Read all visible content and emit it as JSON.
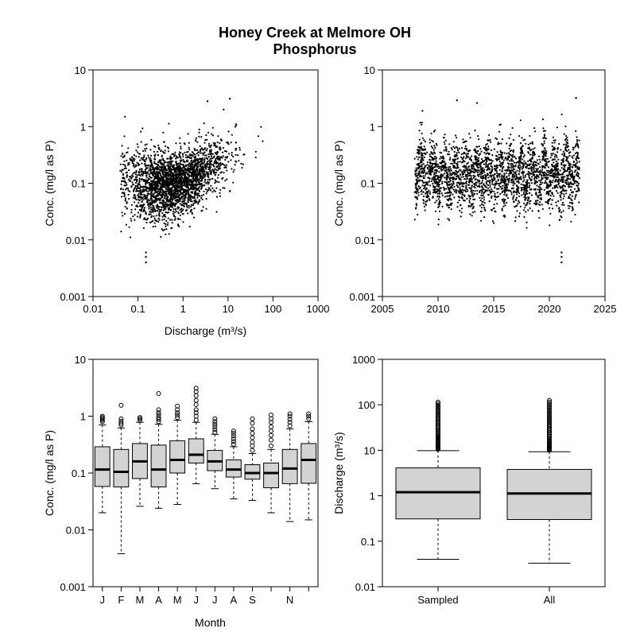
{
  "title": {
    "line1": "Honey Creek at Melmore OH",
    "line2": "Phosphorus"
  },
  "chart_data": [
    {
      "type": "scatter",
      "panel": "top-left",
      "xlabel": "Discharge (m³/s)",
      "ylabel": "Conc. (mg/l as P)",
      "xscale": "log",
      "yscale": "log",
      "xlim": [
        0.01,
        1000
      ],
      "ylim": [
        0.001,
        10
      ],
      "xticks": [
        "0.01",
        "0.1",
        "1",
        "10",
        "100",
        "1000"
      ],
      "yticks": [
        "0.001",
        "0.01",
        "0.1",
        "1",
        "10"
      ],
      "trend": {
        "x": [
          0.04,
          0.1,
          0.3,
          1,
          3,
          10,
          30,
          100
        ],
        "y_median": [
          0.12,
          0.09,
          0.085,
          0.1,
          0.16,
          0.3,
          0.45,
          0.6
        ]
      },
      "notable_points": [
        {
          "x": 0.15,
          "y": 0.006
        },
        {
          "x": 0.15,
          "y": 0.005
        },
        {
          "x": 0.15,
          "y": 0.004
        },
        {
          "x": 3.5,
          "y": 2.8
        },
        {
          "x": 11,
          "y": 3.1
        },
        {
          "x": 8,
          "y": 2.0
        }
      ]
    },
    {
      "type": "scatter",
      "panel": "top-right",
      "xlabel": "",
      "ylabel": "Conc. (mg/l as P)",
      "yscale": "log",
      "xlim": [
        2005,
        2025
      ],
      "ylim": [
        0.001,
        10
      ],
      "xticks": [
        "2005",
        "2010",
        "2015",
        "2020",
        "2025"
      ],
      "yticks": [
        "0.001",
        "0.01",
        "0.1",
        "1",
        "10"
      ],
      "x_range_sampled": [
        2007.9,
        2022.7
      ],
      "typical_range": [
        0.03,
        0.8
      ],
      "notable_points": [
        {
          "x": 2008.6,
          "y": 1.9
        },
        {
          "x": 2011.7,
          "y": 2.9
        },
        {
          "x": 2013.5,
          "y": 2.6
        },
        {
          "x": 2022.4,
          "y": 3.2
        },
        {
          "x": 2021.1,
          "y": 0.006
        },
        {
          "x": 2021.1,
          "y": 0.005
        },
        {
          "x": 2021.1,
          "y": 0.004
        }
      ]
    },
    {
      "type": "box",
      "panel": "bottom-left",
      "xlabel": "Month",
      "ylabel": "Conc. (mg/l as P)",
      "yscale": "log",
      "ylim": [
        0.001,
        10
      ],
      "yticks": [
        "0.001",
        "0.01",
        "0.1",
        "1",
        "10"
      ],
      "categories": [
        "J",
        "F",
        "M",
        "A",
        "M",
        "J",
        "J",
        "A",
        "S",
        "",
        "N",
        ""
      ],
      "boxes": [
        {
          "lo": 0.02,
          "q1": 0.058,
          "med": 0.115,
          "q3": 0.29,
          "hi": 0.7,
          "out": [
            0.8,
            0.85,
            0.9,
            0.95,
            1.0
          ]
        },
        {
          "lo": 0.0038,
          "q1": 0.057,
          "med": 0.105,
          "q3": 0.26,
          "hi": 0.62,
          "out": [
            0.7,
            0.75,
            0.82,
            0.9,
            1.55
          ]
        },
        {
          "lo": 0.026,
          "q1": 0.08,
          "med": 0.16,
          "q3": 0.33,
          "hi": 0.78,
          "out": [
            0.85,
            0.9,
            0.95
          ]
        },
        {
          "lo": 0.024,
          "q1": 0.057,
          "med": 0.115,
          "q3": 0.31,
          "hi": 0.72,
          "out": [
            0.8,
            0.88,
            0.95,
            1.05,
            1.15,
            1.3,
            2.5
          ]
        },
        {
          "lo": 0.028,
          "q1": 0.1,
          "med": 0.17,
          "q3": 0.37,
          "hi": 0.85,
          "out": [
            0.95,
            1.05,
            1.15,
            1.3,
            1.5
          ]
        },
        {
          "lo": 0.065,
          "q1": 0.15,
          "med": 0.21,
          "q3": 0.4,
          "hi": 0.78,
          "out": [
            0.85,
            1.0,
            1.15,
            1.3,
            1.6,
            1.9,
            2.3,
            2.7,
            3.1
          ]
        },
        {
          "lo": 0.053,
          "q1": 0.11,
          "med": 0.16,
          "q3": 0.25,
          "hi": 0.48,
          "out": [
            0.52,
            0.58,
            0.65,
            0.72,
            0.8,
            0.9
          ]
        },
        {
          "lo": 0.035,
          "q1": 0.085,
          "med": 0.115,
          "q3": 0.17,
          "hi": 0.29,
          "out": [
            0.32,
            0.36,
            0.4,
            0.45,
            0.5,
            0.55
          ]
        },
        {
          "lo": 0.033,
          "q1": 0.078,
          "med": 0.1,
          "q3": 0.14,
          "hi": 0.22,
          "out": [
            0.25,
            0.3,
            0.35,
            0.42,
            0.5,
            0.6,
            0.75,
            0.9
          ]
        },
        {
          "lo": 0.02,
          "q1": 0.055,
          "med": 0.1,
          "q3": 0.15,
          "hi": 0.26,
          "out": [
            0.3,
            0.38,
            0.46,
            0.55,
            0.65,
            0.78,
            0.9,
            1.05
          ]
        },
        {
          "lo": 0.014,
          "q1": 0.065,
          "med": 0.12,
          "q3": 0.26,
          "hi": 0.6,
          "out": [
            0.68,
            0.78,
            0.88,
            1.0,
            1.1
          ]
        },
        {
          "lo": 0.015,
          "q1": 0.066,
          "med": 0.17,
          "q3": 0.33,
          "hi": 0.8,
          "out": [
            0.9,
            1.0,
            1.1
          ]
        }
      ]
    },
    {
      "type": "box",
      "panel": "bottom-right",
      "xlabel": "",
      "ylabel": "Discharge (m³/s)",
      "yscale": "log",
      "ylim": [
        0.01,
        1000
      ],
      "yticks": [
        "0.01",
        "0.1",
        "1",
        "10",
        "100",
        "1000"
      ],
      "categories": [
        "Sampled",
        "All"
      ],
      "boxes": [
        {
          "lo": 0.04,
          "q1": 0.31,
          "med": 1.2,
          "q3": 4.1,
          "hi": 9.8,
          "out_range": [
            10.5,
            115
          ]
        },
        {
          "lo": 0.033,
          "q1": 0.3,
          "med": 1.12,
          "q3": 3.8,
          "hi": 9.3,
          "out_range": [
            10,
            125
          ]
        }
      ]
    }
  ]
}
